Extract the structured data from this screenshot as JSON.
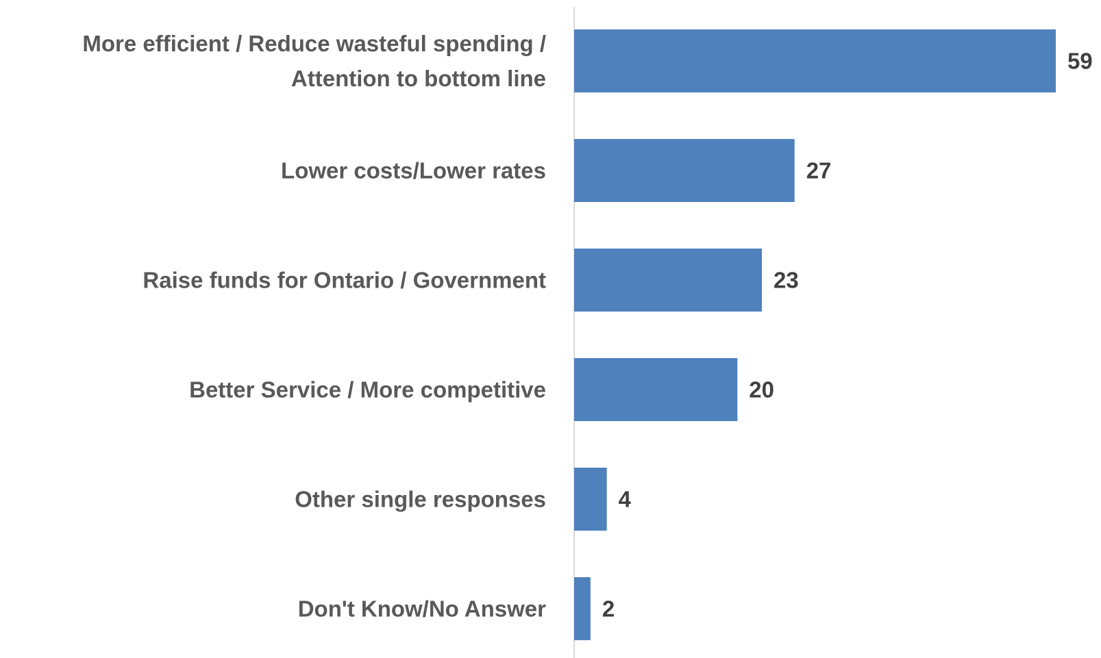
{
  "chart_data": {
    "type": "bar",
    "orientation": "horizontal",
    "title": "",
    "xlabel": "",
    "ylabel": "",
    "categories": [
      [
        "More efficient / Reduce wasteful spending /",
        "Attention to bottom line"
      ],
      [
        "Lower costs/Lower rates"
      ],
      [
        "Raise funds for Ontario / Government"
      ],
      [
        "Better Service / More competitive"
      ],
      [
        "Other single responses"
      ],
      [
        "Don't Know/No Answer"
      ]
    ],
    "values": [
      59,
      27,
      23,
      20,
      4,
      2
    ],
    "value_labels": [
      "59",
      "27",
      "23",
      "20",
      "4",
      "2"
    ],
    "xlim": [
      0,
      59
    ],
    "grid": false,
    "legend": "none",
    "colors": {
      "bar": "#4F81BD",
      "axis": "#D9D9D9",
      "category_text": "#595959",
      "value_text": "#404040"
    }
  }
}
